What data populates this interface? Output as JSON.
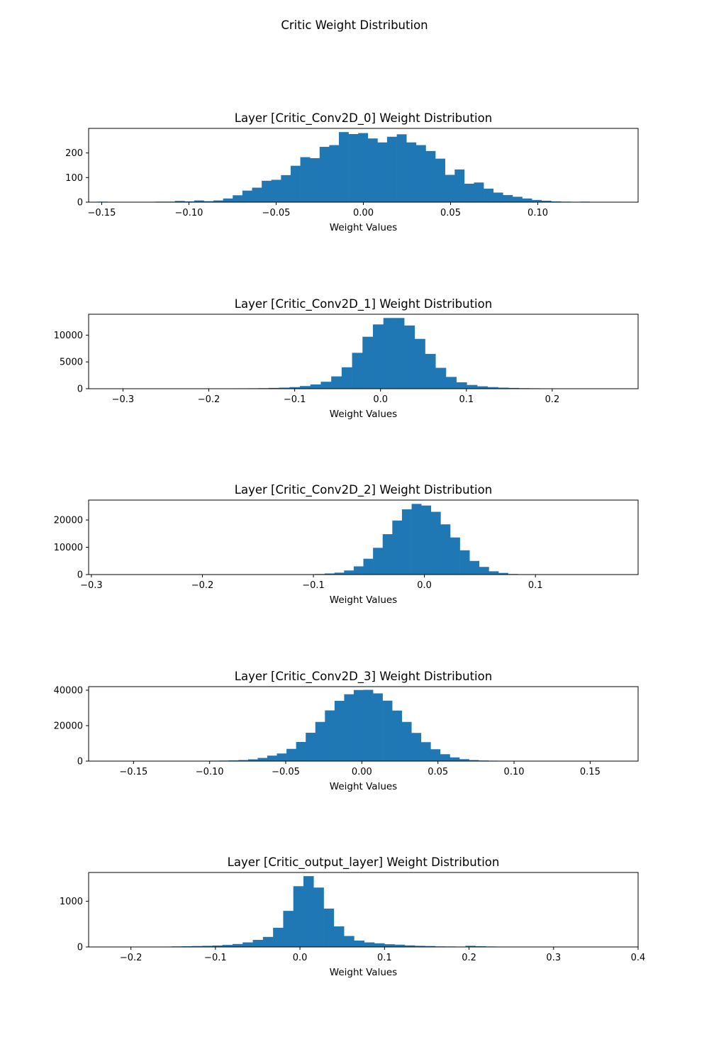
{
  "figure": {
    "suptitle": "Critic Weight Distribution",
    "bar_color": "#1f77b4"
  },
  "chart_data": [
    {
      "type": "bar",
      "title": "Layer [Critic_Conv2D_0] Weight Distribution",
      "xlabel": "Weight Values",
      "ylabel": "",
      "xlim": [
        -0.1575,
        0.1575
      ],
      "ylim": [
        0,
        300
      ],
      "xticks": [
        -0.15,
        -0.1,
        -0.05,
        0.0,
        0.05,
        0.1
      ],
      "xtick_labels": [
        "−0.15",
        "−0.10",
        "−0.05",
        "0.00",
        "0.05",
        "0.10"
      ],
      "yticks": [
        0,
        100,
        200
      ],
      "ytick_labels": [
        "0",
        "100",
        "200"
      ],
      "bin_start": -0.1523,
      "bin_end": 0.1353,
      "values": [
        2,
        0,
        0,
        0,
        1,
        1,
        2,
        2,
        5,
        3,
        7,
        4,
        7,
        15,
        28,
        47,
        59,
        87,
        91,
        110,
        148,
        183,
        179,
        225,
        232,
        285,
        277,
        281,
        259,
        243,
        266,
        276,
        243,
        232,
        208,
        177,
        111,
        133,
        75,
        80,
        55,
        39,
        29,
        22,
        15,
        9,
        6,
        3,
        2,
        1,
        2,
        1
      ]
    },
    {
      "type": "bar",
      "title": "Layer [Critic_Conv2D_1] Weight Distribution",
      "xlabel": "Weight Values",
      "ylabel": "",
      "xlim": [
        -0.34,
        0.3
      ],
      "ylim": [
        0,
        13900
      ],
      "xticks": [
        -0.3,
        -0.2,
        -0.1,
        0.0,
        0.1,
        0.2
      ],
      "xtick_labels": [
        "−0.3",
        "−0.2",
        "−0.1",
        "0.0",
        "0.1",
        "0.2"
      ],
      "yticks": [
        0,
        5000,
        10000
      ],
      "ytick_labels": [
        "0",
        "5000",
        "10000"
      ],
      "bin_start": -0.3125,
      "bin_end": 0.2705,
      "values": [
        40,
        20,
        60,
        10,
        20,
        20,
        30,
        30,
        40,
        40,
        50,
        60,
        70,
        80,
        100,
        150,
        200,
        300,
        500,
        800,
        1300,
        2300,
        4000,
        6700,
        9700,
        12000,
        13200,
        13200,
        11800,
        9300,
        6500,
        3900,
        2200,
        1200,
        700,
        450,
        300,
        200,
        150,
        100,
        80,
        60,
        50,
        40,
        30,
        30,
        20,
        20
      ]
    },
    {
      "type": "bar",
      "title": "Layer [Critic_Conv2D_2] Weight Distribution",
      "xlabel": "Weight Values",
      "ylabel": "",
      "xlim": [
        -0.3025,
        0.1925
      ],
      "ylim": [
        0,
        27300
      ],
      "xticks": [
        -0.3,
        -0.2,
        -0.1,
        0.0,
        0.1
      ],
      "xtick_labels": [
        "−0.3",
        "−0.2",
        "−0.1",
        "0.0",
        "0.1"
      ],
      "yticks": [
        0,
        10000,
        20000
      ],
      "ytick_labels": [
        "0",
        "10000",
        "20000"
      ],
      "bin_start": -0.281,
      "bin_end": 0.171,
      "values": [
        20,
        0,
        0,
        0,
        0,
        0,
        0,
        0,
        0,
        0,
        0,
        0,
        0,
        0,
        0,
        0,
        0,
        0,
        0,
        0,
        100,
        200,
        400,
        700,
        1500,
        3000,
        5800,
        9800,
        14800,
        19800,
        23900,
        25900,
        25300,
        23000,
        18400,
        13600,
        8900,
        5000,
        2800,
        1200,
        600,
        200,
        100,
        50,
        20,
        0,
        0,
        0,
        0,
        0,
        0,
        20
      ]
    },
    {
      "type": "bar",
      "title": "Layer [Critic_Conv2D_3] Weight Distribution",
      "xlabel": "Weight Values",
      "ylabel": "",
      "xlim": [
        -0.1795,
        0.1815
      ],
      "ylim": [
        0,
        42000
      ],
      "xticks": [
        -0.15,
        -0.1,
        -0.05,
        0.0,
        0.05,
        0.1,
        0.15
      ],
      "xtick_labels": [
        "−0.15",
        "−0.10",
        "−0.05",
        "0.00",
        "0.05",
        "0.10",
        "0.15"
      ],
      "yticks": [
        0,
        20000,
        40000
      ],
      "ytick_labels": [
        "0",
        "20000",
        "40000"
      ],
      "bin_start": -0.1631,
      "bin_end": 0.1651,
      "values": [
        200,
        100,
        80,
        200,
        60,
        80,
        100,
        120,
        150,
        200,
        250,
        300,
        400,
        600,
        1000,
        1800,
        3100,
        4300,
        6900,
        10800,
        16000,
        22100,
        28600,
        34000,
        37700,
        40100,
        40200,
        38200,
        34100,
        28500,
        22100,
        15900,
        10700,
        6700,
        3900,
        2100,
        1100,
        600,
        350,
        250,
        200,
        150,
        120,
        100,
        80,
        60,
        50,
        40,
        30,
        20,
        20,
        200
      ]
    },
    {
      "type": "bar",
      "title": "Layer [Critic_output_layer] Weight Distribution",
      "xlabel": "Weight Values",
      "ylabel": "",
      "xlim": [
        -0.25,
        0.4
      ],
      "ylim": [
        0,
        1630
      ],
      "xticks": [
        -0.2,
        -0.1,
        0.0,
        0.1,
        0.2,
        0.3,
        0.4
      ],
      "xtick_labels": [
        "−0.2",
        "−0.1",
        "0.0",
        "0.1",
        "0.2",
        "0.3",
        "0.4"
      ],
      "yticks": [
        0,
        1000
      ],
      "ytick_labels": [
        "0",
        "1000"
      ],
      "bin_start": -0.2235,
      "bin_end": 0.3755,
      "values": [
        2,
        2,
        3,
        3,
        5,
        8,
        12,
        15,
        20,
        25,
        32,
        45,
        65,
        100,
        155,
        220,
        420,
        790,
        1330,
        1550,
        1300,
        840,
        450,
        240,
        140,
        100,
        80,
        60,
        50,
        35,
        25,
        20,
        12,
        10,
        8,
        25,
        15,
        10,
        5,
        3,
        2,
        2,
        1,
        1,
        1,
        1,
        1,
        1,
        1,
        1
      ]
    }
  ]
}
